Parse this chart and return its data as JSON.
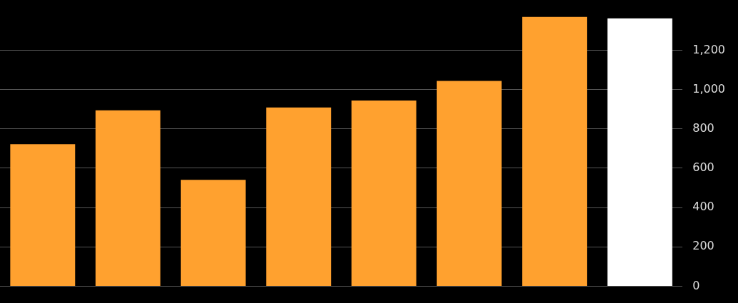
{
  "chart_data": {
    "type": "bar",
    "categories": [
      null,
      null,
      null,
      null,
      null,
      null,
      null,
      null
    ],
    "values": [
      722,
      894,
      541,
      909,
      944,
      1044,
      1370,
      1362
    ],
    "colors": [
      "#ffa12f",
      "#ffa12f",
      "#ffa12f",
      "#ffa12f",
      "#ffa12f",
      "#ffa12f",
      "#ffa12f",
      "#ffffff"
    ],
    "ylim": [
      0,
      1370
    ],
    "yticks": [
      0,
      200,
      400,
      600,
      800,
      {
        "value": 1000,
        "label": "1,000"
      },
      {
        "value": 1200,
        "label": "1,200"
      }
    ],
    "grid": "y",
    "legend": false
  }
}
